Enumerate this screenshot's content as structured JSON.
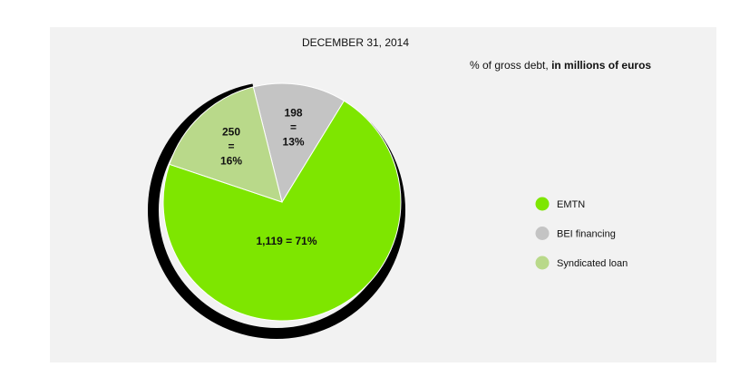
{
  "chart_data": {
    "type": "pie",
    "title": "DECEMBER 31, 2014",
    "subtitle": "% of gross debt,",
    "subtitle_bold": "in millions of euros",
    "categories": [
      "BEI financing",
      "EMTN",
      "Syndicated loan"
    ],
    "values": [
      198,
      1119,
      250
    ],
    "value_labels": [
      "198 = 13%",
      "1,119 = 71%",
      "250 = 16%"
    ],
    "colors": [
      "#c4c4c4",
      "#7ee600",
      "#b9d98a"
    ],
    "legend_order": [
      1,
      0,
      2
    ],
    "legend": "right"
  }
}
